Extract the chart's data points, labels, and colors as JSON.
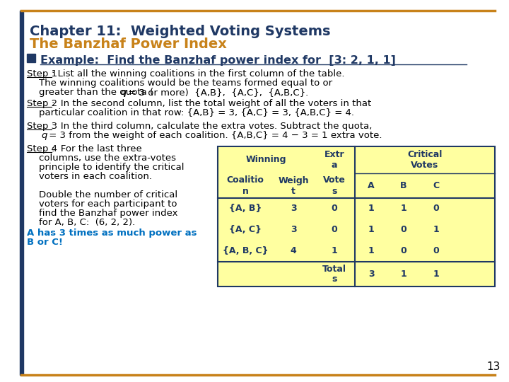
{
  "title_line1": "Chapter 11:  Weighted Voting Systems",
  "title_line2": "The Banzhaf Power Index",
  "title_line1_color": "#1F3864",
  "title_line2_color": "#C8821A",
  "bg_color": "#FFFFFF",
  "border_color": "#C8821A",
  "bullet_color": "#1F3864",
  "body_color": "#000000",
  "highlight_color": "#0070C0",
  "table_bg": "#FFFFA0",
  "table_border": "#1F3864",
  "table_text_color": "#1F3864",
  "page_number": "13",
  "bullet_text": "Example:  Find the Banzhaf power index for  [3: 2, 1, 1]",
  "step3_text2": " = 3 from the weight of each coalition. {A,B,C} = 4 − 3 = 1 extra vote.",
  "table_rows": [
    [
      "{A, B}",
      "3",
      "0",
      "1",
      "1",
      "0"
    ],
    [
      "{A, C}",
      "3",
      "0",
      "1",
      "0",
      "1"
    ],
    [
      "{A, B, C}",
      "4",
      "1",
      "1",
      "0",
      "0"
    ]
  ],
  "table_totals": [
    "",
    "",
    "Total\ns",
    "3",
    "1",
    "1"
  ]
}
